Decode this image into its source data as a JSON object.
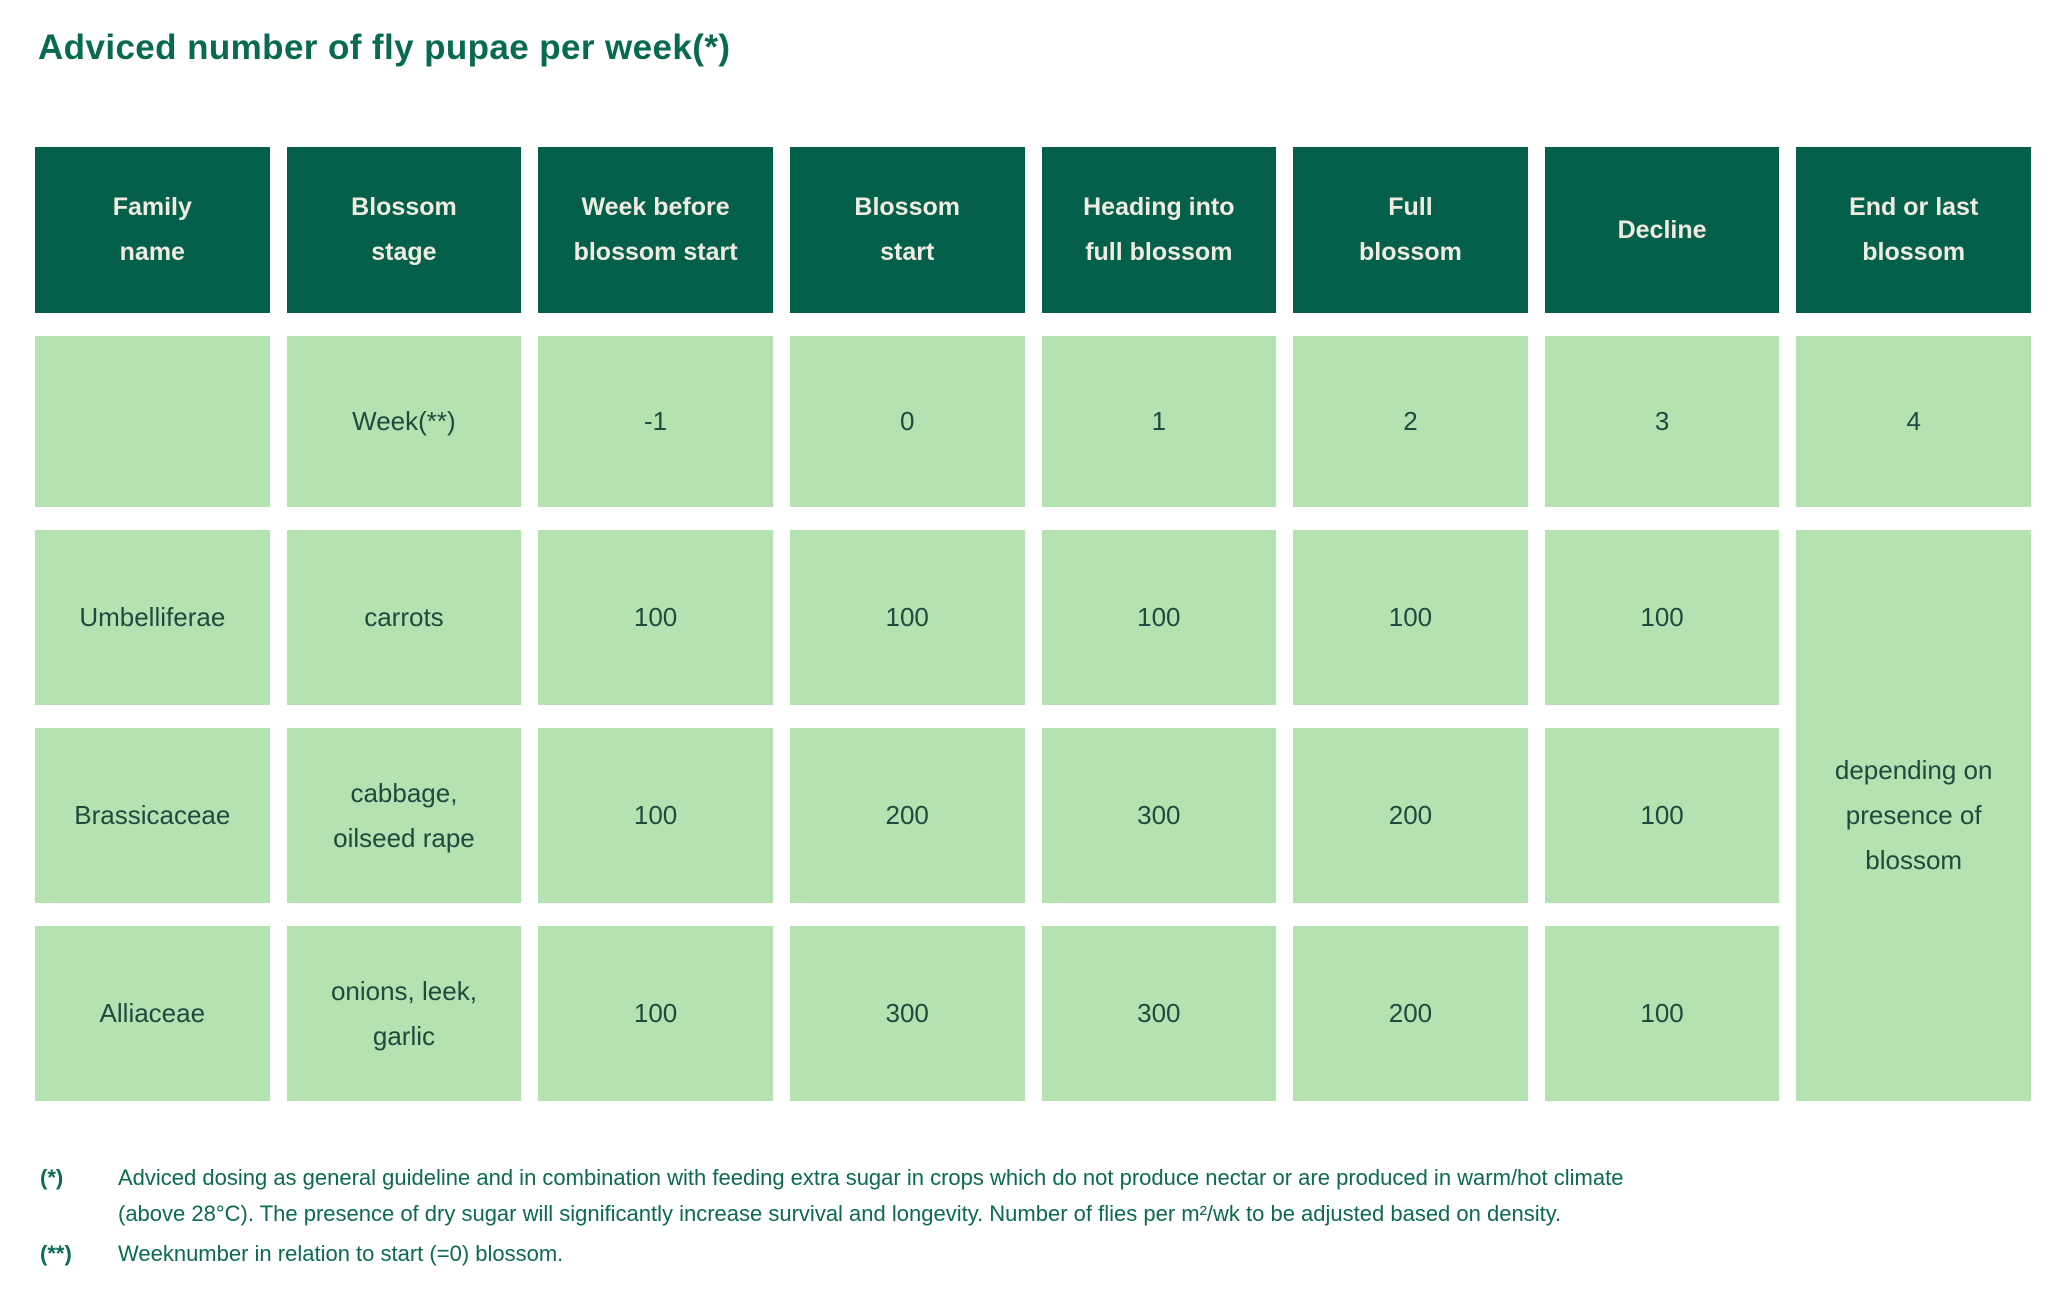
{
  "title": "Adviced number of fly pupae per week(*)",
  "colors": {
    "header_bg": "#04604a",
    "header_text": "#f1ece1",
    "cell_bg": "#b4e3b1",
    "cell_text": "#1d4b3f",
    "accent_green": "#086a50"
  },
  "table": {
    "headers": [
      {
        "label": [
          "Family",
          "name"
        ]
      },
      {
        "label": [
          "Blossom",
          "stage"
        ]
      },
      {
        "label": [
          "Week before",
          "blossom start"
        ]
      },
      {
        "label": [
          "Blossom",
          "start"
        ]
      },
      {
        "label": [
          "Heading into",
          "full blossom"
        ]
      },
      {
        "label": [
          "Full",
          "blossom"
        ]
      },
      {
        "label": [
          "Decline"
        ]
      },
      {
        "label": [
          "End or last",
          "blossom"
        ]
      }
    ],
    "week_row": {
      "family": "",
      "stage": "Week(**)",
      "values": [
        "-1",
        "0",
        "1",
        "2",
        "3",
        "4"
      ]
    },
    "rows": [
      {
        "family": "Umbelliferae",
        "stage": [
          "carrots"
        ],
        "values": [
          "100",
          "100",
          "100",
          "100",
          "100"
        ]
      },
      {
        "family": "Brassicaceae",
        "stage": [
          "cabbage,",
          "oilseed rape"
        ],
        "values": [
          "100",
          "200",
          "300",
          "200",
          "100"
        ]
      },
      {
        "family": "Alliaceae",
        "stage": [
          "onions, leek,",
          "garlic"
        ],
        "values": [
          "100",
          "300",
          "300",
          "200",
          "100"
        ]
      }
    ],
    "merged_cell": [
      "depending on",
      "presence of",
      "blossom"
    ]
  },
  "footnotes": [
    {
      "marker": "(*)",
      "lines": [
        "Adviced dosing as general guideline and in combination with feeding extra sugar in crops which do not produce nectar or are produced in warm/hot climate",
        "(above 28°C). The presence of dry sugar will significantly increase survival and longevity. Number of flies per m²/wk to be adjusted based on density."
      ]
    },
    {
      "marker": "(**)",
      "lines": [
        "Weeknumber in relation to start (=0) blossom."
      ]
    }
  ]
}
